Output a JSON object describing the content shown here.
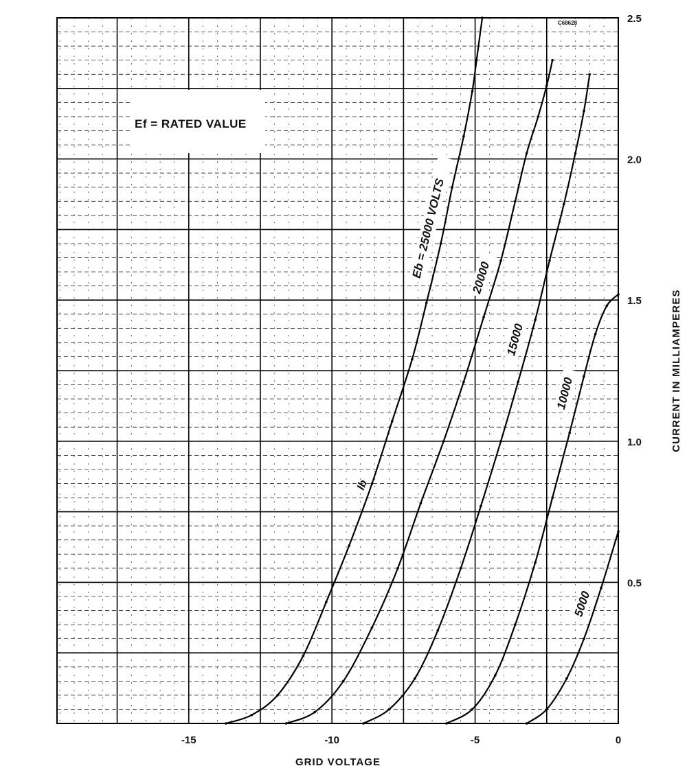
{
  "chart_data": {
    "type": "line",
    "title": "",
    "xlabel": "GRID VOLTAGE",
    "ylabel": "CURRENT IN MILLIAMPERES",
    "xlim": [
      -19.6,
      0
    ],
    "ylim": [
      0,
      2.5
    ],
    "x_ticks": [
      "-15",
      "-10",
      "-5",
      "0"
    ],
    "x_tick_values": [
      -15,
      -10,
      -5,
      0
    ],
    "y_ticks": [
      "0.5",
      "1.0",
      "1.5",
      "2.0",
      "2.5"
    ],
    "y_tick_values": [
      0.5,
      1.0,
      1.5,
      2.0,
      2.5
    ],
    "grid": true,
    "axis_side": "right",
    "annotations": {
      "filament": "Ef = RATED VALUE",
      "current_symbol": "Ib",
      "drawing_number": "C68628"
    },
    "series": [
      {
        "name": "Eb = 25000 VOLTS",
        "x": [
          -13.7,
          -12.8,
          -11.9,
          -11.0,
          -10.2,
          -9.4,
          -8.6,
          -7.9,
          -7.2,
          -6.7,
          -6.2,
          -5.8,
          -5.4,
          -5.1,
          -4.95,
          -4.75
        ],
        "y": [
          0,
          0.03,
          0.1,
          0.24,
          0.43,
          0.63,
          0.85,
          1.07,
          1.29,
          1.49,
          1.7,
          1.9,
          2.08,
          2.24,
          2.35,
          2.5
        ]
      },
      {
        "name": "20000",
        "x": [
          -11.6,
          -10.6,
          -9.6,
          -8.6,
          -7.7,
          -6.9,
          -6.1,
          -5.4,
          -4.7,
          -4.1,
          -3.6,
          -3.2,
          -2.8,
          -2.5,
          -2.3
        ],
        "y": [
          0,
          0.04,
          0.15,
          0.34,
          0.55,
          0.78,
          1.0,
          1.21,
          1.44,
          1.64,
          1.85,
          2.02,
          2.15,
          2.26,
          2.35
        ]
      },
      {
        "name": "15000",
        "x": [
          -8.9,
          -8.0,
          -7.1,
          -6.3,
          -5.5,
          -4.8,
          -4.1,
          -3.5,
          -2.9,
          -2.4,
          -1.9,
          -1.5,
          -1.2,
          -1.0
        ],
        "y": [
          0,
          0.05,
          0.16,
          0.33,
          0.55,
          0.77,
          1.0,
          1.21,
          1.43,
          1.64,
          1.84,
          2.02,
          2.17,
          2.3
        ]
      },
      {
        "name": "10000",
        "x": [
          -6.0,
          -5.1,
          -4.3,
          -3.6,
          -2.9,
          -2.3,
          -1.7,
          -1.2,
          -0.8,
          -0.4,
          0.0
        ],
        "y": [
          0,
          0.05,
          0.17,
          0.35,
          0.57,
          0.8,
          1.03,
          1.23,
          1.38,
          1.48,
          1.52
        ]
      },
      {
        "name": "5000",
        "x": [
          -3.2,
          -2.5,
          -1.8,
          -1.2,
          -0.6,
          0.0
        ],
        "y": [
          0,
          0.05,
          0.16,
          0.3,
          0.48,
          0.68
        ]
      }
    ]
  }
}
